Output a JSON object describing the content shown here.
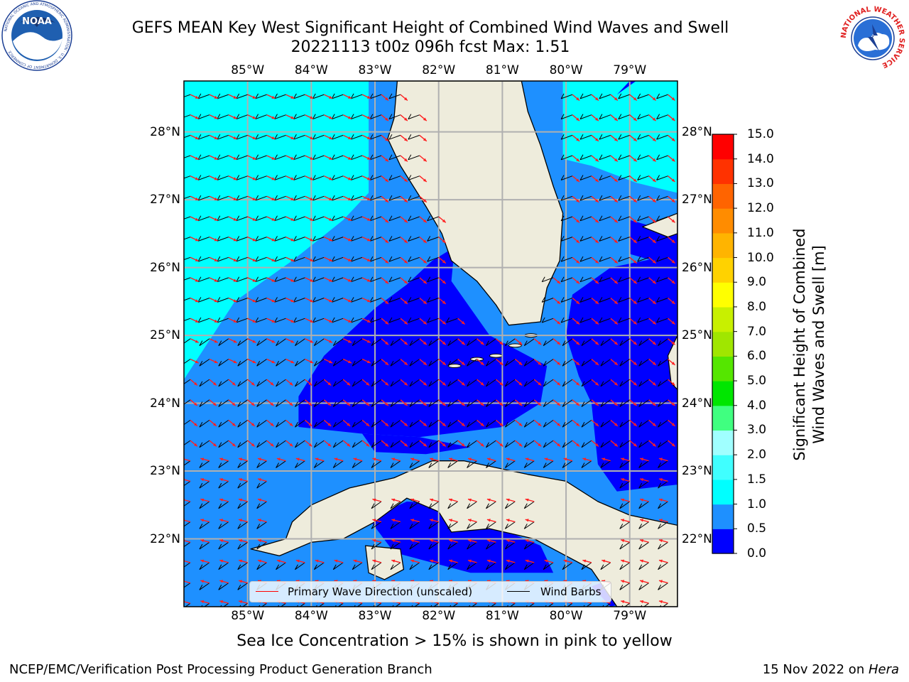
{
  "title": {
    "line1": "GEFS MEAN Key West Significant Height of Combined Wind Waves and Swell",
    "line2": "20221113 t00z 096h fcst   Max: 1.51"
  },
  "logos": {
    "left": {
      "icon": "noaa-logo",
      "text": "NOAA",
      "ring_text": "NATIONAL OCEANIC AND ATMOSPHERIC ADMINISTRATION · U.S. DEPARTMENT OF COMMERCE"
    },
    "right": {
      "icon": "nws-logo",
      "ring_text": "NATIONAL WEATHER SERVICE"
    }
  },
  "map": {
    "projection": "PlateCarree",
    "extent": {
      "lon_min": -86.0,
      "lon_max": -78.25,
      "lat_min": 21.0,
      "lat_max": 28.75
    },
    "lon_ticks": [
      "85°W",
      "84°W",
      "83°W",
      "82°W",
      "81°W",
      "80°W",
      "79°W"
    ],
    "lat_ticks": [
      "28°N",
      "27°N",
      "26°N",
      "25°N",
      "24°N",
      "23°N",
      "22°N"
    ],
    "gridlines": true,
    "colors": {
      "land": "#eeecdc",
      "gridline": "#b0b0b0",
      "coastline": "#000000",
      "wave_arrow": "#ff2020",
      "wind_barb": "#000000"
    }
  },
  "colorbar": {
    "label": "Significant Height of Combined\nWind Waves and Swell [m]",
    "bounds": [
      0.0,
      0.5,
      1.0,
      1.5,
      2.0,
      3.0,
      4.0,
      5.0,
      6.0,
      7.0,
      8.0,
      9.0,
      10.0,
      11.0,
      12.0,
      13.0,
      14.0,
      15.0
    ],
    "tick_labels": [
      "0.0",
      "0.5",
      "1.0",
      "1.5",
      "2.0",
      "3.0",
      "4.0",
      "5.0",
      "6.0",
      "7.0",
      "8.0",
      "9.0",
      "10.0",
      "11.0",
      "12.0",
      "13.0",
      "14.0",
      "15.0"
    ],
    "colors": [
      "#0000ff",
      "#1e90ff",
      "#00ffff",
      "#40ffff",
      "#a0ffff",
      "#40ff80",
      "#00e600",
      "#55e600",
      "#a0e600",
      "#c8f000",
      "#ffff00",
      "#ffd200",
      "#ffb400",
      "#ff8c00",
      "#ff6400",
      "#ff3200",
      "#ff0000"
    ]
  },
  "legend": {
    "wave": {
      "label": "Primary Wave Direction (unscaled)",
      "color": "#ff0000"
    },
    "wind": {
      "label": "Wind Barbs",
      "color": "#000000"
    }
  },
  "footnote": "Sea Ice Concentration > 15% is shown in pink to yellow",
  "footer": {
    "left": "NCEP/EMC/Verification Post Processing Product Generation Branch",
    "right_prefix": "15 Nov 2022 on ",
    "right_host": "Hera"
  }
}
